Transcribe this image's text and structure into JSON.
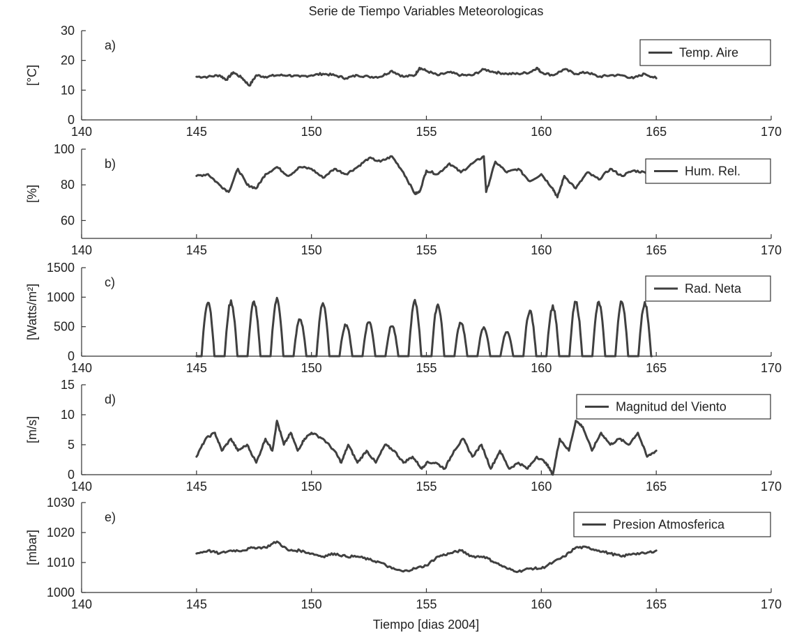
{
  "title": "Serie de Tiempo Variables Meteorologicas",
  "xlabel": "Tiempo [dias 2004]",
  "chart_data": [
    {
      "type": "line",
      "panel_label": "a)",
      "ylabel": "[°C]",
      "legend": "Temp. Aire",
      "xlim": [
        140,
        170
      ],
      "ylim": [
        0,
        30
      ],
      "x_ticks": [
        140,
        145,
        150,
        155,
        160,
        165,
        170
      ],
      "y_ticks": [
        0,
        10,
        20,
        30
      ],
      "grid": false,
      "legend_position": "top-right",
      "series": [
        {
          "name": "Temp. Aire",
          "x": [
            145,
            145.5,
            146,
            146.3,
            146.6,
            147,
            147.3,
            147.6,
            148,
            148.5,
            149,
            149.5,
            150,
            150.5,
            151,
            151.5,
            152,
            152.5,
            153,
            153.5,
            154,
            154.5,
            154.7,
            155,
            155.5,
            156,
            156.5,
            157,
            157.5,
            158,
            158.5,
            159,
            159.5,
            159.8,
            160,
            160.5,
            161,
            161.5,
            162,
            162.5,
            163,
            163.5,
            164,
            164.5,
            165
          ],
          "values": [
            14.5,
            14.5,
            15,
            13.5,
            16,
            14,
            11.5,
            15,
            14.5,
            15,
            15,
            14.5,
            15,
            15.5,
            15,
            14,
            15,
            14.5,
            14.5,
            16.5,
            14.5,
            15,
            17.5,
            16.5,
            15,
            16,
            15,
            15,
            17,
            16,
            15.5,
            15.5,
            16,
            17.5,
            16,
            15,
            17,
            15.5,
            16,
            14.5,
            15,
            15,
            14,
            15.5,
            14
          ]
        }
      ]
    },
    {
      "type": "line",
      "panel_label": "b)",
      "ylabel": "[%]",
      "legend": "Hum. Rel.",
      "xlim": [
        140,
        170
      ],
      "ylim": [
        50,
        100
      ],
      "x_ticks": [
        140,
        145,
        150,
        155,
        160,
        165,
        170
      ],
      "y_ticks": [
        60,
        80,
        100
      ],
      "grid": false,
      "legend_position": "top-right",
      "series": [
        {
          "name": "Hum. Rel.",
          "x": [
            145,
            145.5,
            146,
            146.4,
            146.8,
            147.2,
            147.6,
            148,
            148.5,
            149,
            149.5,
            150,
            150.5,
            151,
            151.5,
            152,
            152.5,
            153,
            153.5,
            154,
            154.5,
            154.7,
            155,
            155.5,
            156,
            156.5,
            157,
            157.5,
            157.6,
            158,
            158.5,
            159,
            159.5,
            160,
            160.5,
            160.7,
            161,
            161.5,
            162,
            162.5,
            163,
            163.5,
            164,
            164.5,
            165
          ],
          "values": [
            85,
            86,
            80,
            76,
            89,
            80,
            78,
            86,
            90,
            85,
            90,
            89,
            84,
            89,
            86,
            90,
            95,
            93,
            96,
            87,
            75,
            76,
            88,
            86,
            92,
            87,
            92,
            96,
            76,
            93,
            87,
            89,
            82,
            86,
            78,
            73,
            85,
            78,
            87,
            83,
            89,
            85,
            88,
            87,
            88
          ]
        }
      ]
    },
    {
      "type": "line",
      "panel_label": "c)",
      "ylabel": "[Watts/m²]",
      "legend": "Rad. Neta",
      "xlim": [
        140,
        170
      ],
      "ylim": [
        0,
        1500
      ],
      "x_ticks": [
        140,
        145,
        150,
        155,
        160,
        165,
        170
      ],
      "y_ticks": [
        0,
        500,
        1000,
        1500
      ],
      "grid": false,
      "legend_position": "top-right",
      "series": [
        {
          "name": "Rad. Neta",
          "daily_peak_day": [
            145.5,
            146.5,
            147.5,
            148.5,
            149.5,
            150.5,
            151.5,
            152.5,
            153.5,
            154.5,
            155.5,
            156.5,
            157.5,
            158.5,
            159.5,
            160.5,
            161.5,
            162.5,
            163.5,
            164.5
          ],
          "daily_peak_value": [
            970,
            960,
            950,
            1000,
            650,
            940,
            560,
            610,
            540,
            960,
            910,
            600,
            500,
            420,
            800,
            870,
            950,
            940,
            960,
            930
          ]
        }
      ]
    },
    {
      "type": "line",
      "panel_label": "d)",
      "ylabel": "[m/s]",
      "legend": "Magnitud del Viento",
      "xlim": [
        140,
        170
      ],
      "ylim": [
        0,
        15
      ],
      "x_ticks": [
        140,
        145,
        150,
        155,
        160,
        165,
        170
      ],
      "y_ticks": [
        0,
        5,
        10,
        15
      ],
      "grid": false,
      "legend_position": "top-right",
      "series": [
        {
          "name": "Magnitud del Viento",
          "x": [
            145,
            145.4,
            145.8,
            146.1,
            146.5,
            146.8,
            147.2,
            147.6,
            148,
            148.3,
            148.5,
            148.8,
            149.1,
            149.4,
            149.7,
            150,
            150.5,
            151,
            151.3,
            151.6,
            152,
            152.4,
            152.8,
            153.2,
            153.6,
            154,
            154.4,
            154.8,
            155,
            155.4,
            155.8,
            156.2,
            156.6,
            157,
            157.4,
            157.8,
            158.2,
            158.6,
            159,
            159.4,
            159.8,
            160.2,
            160.5,
            160.8,
            161.2,
            161.5,
            161.8,
            162.2,
            162.6,
            163,
            163.4,
            163.8,
            164.2,
            164.6,
            165
          ],
          "values": [
            3,
            6,
            7,
            4,
            6,
            4,
            5,
            2,
            6,
            4,
            9,
            5,
            7,
            4,
            6,
            7,
            6,
            4,
            2,
            5,
            2,
            4,
            2,
            5,
            4,
            2,
            3,
            1,
            2,
            2,
            1,
            4,
            6,
            3,
            5,
            1,
            4,
            1,
            2,
            1,
            3,
            2,
            0,
            6,
            4,
            9,
            8,
            4,
            7,
            5,
            6,
            5,
            7,
            3,
            4
          ]
        }
      ]
    },
    {
      "type": "line",
      "panel_label": "e)",
      "ylabel": "[mbar]",
      "legend": "Presion Atmosferica",
      "xlim": [
        140,
        170
      ],
      "ylim": [
        1000,
        1030
      ],
      "x_ticks": [
        140,
        145,
        150,
        155,
        160,
        165,
        170
      ],
      "y_ticks": [
        1000,
        1010,
        1020,
        1030
      ],
      "grid": false,
      "legend_position": "top-right",
      "series": [
        {
          "name": "Presion Atmosferica",
          "x": [
            145,
            145.5,
            146,
            146.5,
            147,
            147.5,
            148,
            148.5,
            149,
            149.5,
            150,
            150.5,
            151,
            151.5,
            152,
            152.5,
            153,
            153.5,
            154,
            154.5,
            155,
            155.5,
            156,
            156.5,
            157,
            157.5,
            158,
            158.5,
            159,
            159.5,
            160,
            160.5,
            161,
            161.5,
            162,
            162.5,
            163,
            163.5,
            164,
            164.5,
            165
          ],
          "values": [
            1013,
            1014,
            1013,
            1014,
            1014,
            1015,
            1015,
            1017,
            1014,
            1014,
            1013,
            1012,
            1013,
            1012,
            1012,
            1011,
            1010,
            1008,
            1007,
            1008,
            1009,
            1012,
            1013,
            1014,
            1012,
            1012,
            1010,
            1008,
            1007,
            1008,
            1008,
            1010,
            1012,
            1015,
            1015,
            1014,
            1013,
            1012,
            1013,
            1013,
            1014
          ]
        }
      ]
    }
  ]
}
